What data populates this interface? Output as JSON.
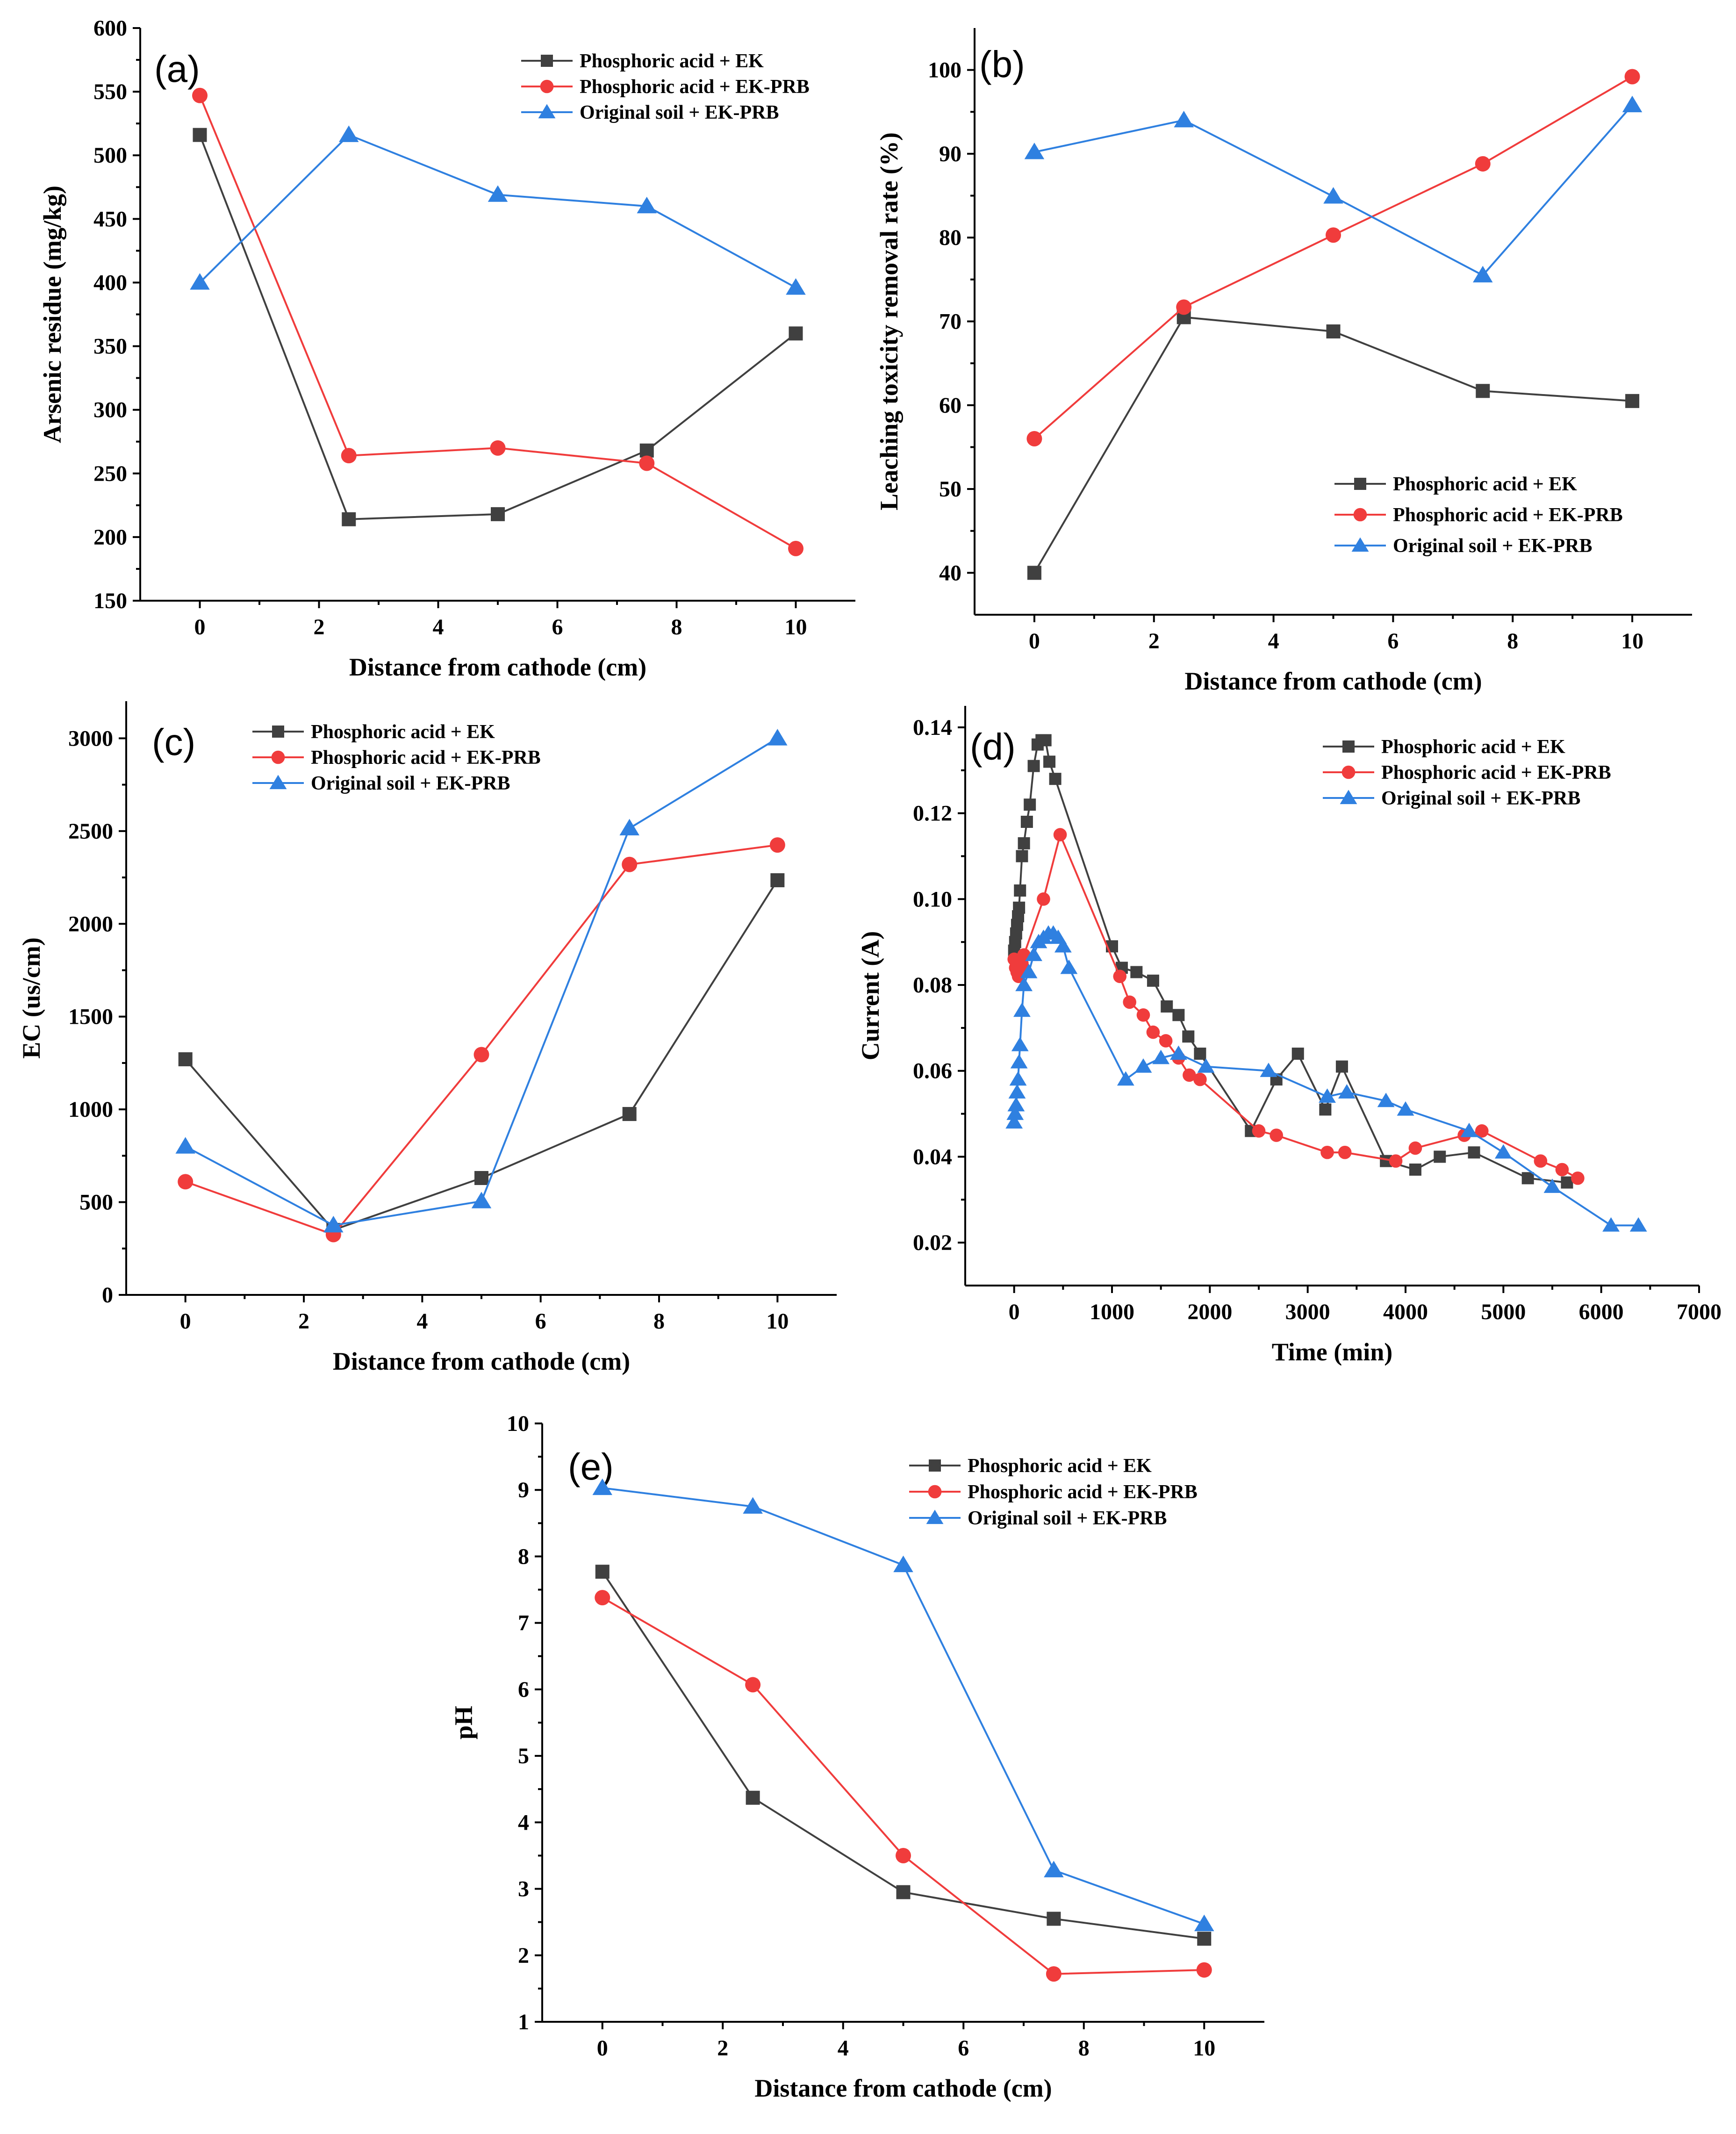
{
  "figure": {
    "colors": {
      "Phosphoric acid + EK": "#404040",
      "Phosphoric acid + EK-PRB": "#f03c3c",
      "Original soil + EK-PRB": "#2f80e0"
    },
    "markers": {
      "Phosphoric acid + EK": "square",
      "Phosphoric acid + EK-PRB": "circle",
      "Original soil + EK-PRB": "triangle"
    }
  },
  "chart_data": [
    {
      "id": "a",
      "panel_label": "(a)",
      "type": "line",
      "xlabel": "Distance from cathode (cm)",
      "ylabel": "Arsenic residue (mg/kg)",
      "xlim": [
        -1,
        11
      ],
      "ylim": [
        150,
        600
      ],
      "xticks": [
        0,
        2,
        4,
        6,
        8,
        10
      ],
      "yticks": [
        150,
        200,
        250,
        300,
        350,
        400,
        450,
        500,
        550,
        600
      ],
      "legend": "top-right",
      "series": [
        {
          "name": "Phosphoric acid + EK",
          "x": [
            0,
            2.5,
            5,
            7.5,
            10
          ],
          "values": [
            516,
            214,
            218,
            268,
            360
          ]
        },
        {
          "name": "Phosphoric acid + EK-PRB",
          "x": [
            0,
            2.5,
            5,
            7.5,
            10
          ],
          "values": [
            547,
            264,
            270,
            258,
            191
          ]
        },
        {
          "name": "Original soil + EK-PRB",
          "x": [
            0,
            2.5,
            5,
            7.5,
            10
          ],
          "values": [
            400,
            516,
            469,
            460,
            396
          ]
        }
      ]
    },
    {
      "id": "b",
      "panel_label": "(b)",
      "type": "line",
      "xlabel": "Distance from cathode (cm)",
      "ylabel": "Leaching toxicity removal rate (%)",
      "xlim": [
        -1,
        11
      ],
      "ylim": [
        35,
        105
      ],
      "xticks": [
        0,
        2,
        4,
        6,
        8,
        10
      ],
      "yticks": [
        40,
        50,
        60,
        70,
        80,
        90,
        100
      ],
      "legend": "bottom-right",
      "series": [
        {
          "name": "Phosphoric acid + EK",
          "x": [
            0,
            2.5,
            5,
            7.5,
            10
          ],
          "values": [
            40,
            70.5,
            68.8,
            61.7,
            60.5
          ]
        },
        {
          "name": "Phosphoric acid + EK-PRB",
          "x": [
            0,
            2.5,
            5,
            7.5,
            10
          ],
          "values": [
            56,
            71.7,
            80.3,
            88.8,
            99.2
          ]
        },
        {
          "name": "Original soil + EK-PRB",
          "x": [
            0,
            2.5,
            5,
            7.5,
            10
          ],
          "values": [
            90.2,
            94,
            84.9,
            75.5,
            95.8
          ]
        }
      ]
    },
    {
      "id": "c",
      "panel_label": "(c)",
      "type": "line",
      "xlabel": "Distance from cathode (cm)",
      "ylabel": "EC (us/cm)",
      "xlim": [
        -1,
        11
      ],
      "ylim": [
        0,
        3200
      ],
      "xticks": [
        0,
        2,
        4,
        6,
        8,
        10
      ],
      "yticks": [
        0,
        500,
        1000,
        1500,
        2000,
        2500,
        3000
      ],
      "legend": "top-left",
      "series": [
        {
          "name": "Phosphoric acid + EK",
          "x": [
            0,
            2.5,
            5,
            7.5,
            10
          ],
          "values": [
            1270,
            350,
            630,
            975,
            2235
          ]
        },
        {
          "name": "Phosphoric acid + EK-PRB",
          "x": [
            0,
            2.5,
            5,
            7.5,
            10
          ],
          "values": [
            610,
            325,
            1295,
            2320,
            2425
          ]
        },
        {
          "name": "Original soil + EK-PRB",
          "x": [
            0,
            2.5,
            5,
            7.5,
            10
          ],
          "values": [
            800,
            375,
            505,
            2515,
            3000
          ]
        }
      ]
    },
    {
      "id": "d",
      "panel_label": "(d)",
      "type": "line",
      "xlabel": "Time (min)",
      "ylabel": "Current (A)",
      "xlim": [
        -500,
        7000
      ],
      "ylim": [
        0.01,
        0.145
      ],
      "xticks": [
        0,
        1000,
        2000,
        3000,
        4000,
        5000,
        6000,
        7000
      ],
      "yticks": [
        0.02,
        0.04,
        0.06,
        0.08,
        0.1,
        0.12,
        0.14
      ],
      "ytick_labels": [
        "0.02",
        "0.04",
        "0.06",
        "0.08",
        "0.10",
        "0.12",
        "0.14"
      ],
      "legend": "top-right",
      "series": [
        {
          "name": "Phosphoric acid + EK",
          "x": [
            0,
            10,
            20,
            30,
            40,
            50,
            60,
            80,
            100,
            130,
            160,
            200,
            240,
            280,
            320,
            360,
            420,
            1000,
            1100,
            1250,
            1420,
            1560,
            1680,
            1780,
            1900,
            2420,
            2680,
            2900,
            3180,
            3350,
            3800,
            4100,
            4350,
            4700,
            5250,
            5650
          ],
          "values": [
            0.088,
            0.09,
            0.092,
            0.094,
            0.096,
            0.098,
            0.102,
            0.11,
            0.113,
            0.118,
            0.122,
            0.131,
            0.136,
            0.137,
            0.137,
            0.132,
            0.128,
            0.089,
            0.084,
            0.083,
            0.081,
            0.075,
            0.073,
            0.068,
            0.064,
            0.046,
            0.058,
            0.064,
            0.051,
            0.061,
            0.039,
            0.037,
            0.04,
            0.041,
            0.035,
            0.034
          ]
        },
        {
          "name": "Phosphoric acid + EK-PRB",
          "x": [
            0,
            15,
            30,
            45,
            60,
            80,
            100,
            300,
            470,
            1080,
            1180,
            1320,
            1420,
            1550,
            1680,
            1790,
            1900,
            2500,
            2680,
            3200,
            3380,
            3900,
            4100,
            4600,
            4780,
            5380,
            5600,
            5760
          ],
          "values": [
            0.086,
            0.084,
            0.083,
            0.082,
            0.084,
            0.085,
            0.087,
            0.1,
            0.115,
            0.082,
            0.076,
            0.073,
            0.069,
            0.067,
            0.063,
            0.059,
            0.058,
            0.046,
            0.045,
            0.041,
            0.041,
            0.039,
            0.042,
            0.045,
            0.046,
            0.039,
            0.037,
            0.035
          ]
        },
        {
          "name": "Original soil + EK-PRB",
          "x": [
            0,
            10,
            20,
            30,
            40,
            50,
            60,
            80,
            100,
            150,
            200,
            250,
            300,
            350,
            400,
            450,
            500,
            560,
            1140,
            1320,
            1500,
            1680,
            1960,
            2600,
            3200,
            3400,
            3800,
            4000,
            4650,
            5000,
            5500,
            6100,
            6380
          ],
          "values": [
            0.048,
            0.05,
            0.052,
            0.055,
            0.058,
            0.062,
            0.066,
            0.074,
            0.08,
            0.083,
            0.087,
            0.09,
            0.091,
            0.092,
            0.092,
            0.091,
            0.089,
            0.084,
            0.058,
            0.061,
            0.063,
            0.064,
            0.061,
            0.06,
            0.054,
            0.055,
            0.053,
            0.051,
            0.046,
            0.041,
            0.033,
            0.024,
            0.024
          ]
        }
      ]
    },
    {
      "id": "e",
      "panel_label": "(e)",
      "type": "line",
      "xlabel": "Distance from cathode (cm)",
      "ylabel": "pH",
      "xlim": [
        -1,
        11
      ],
      "ylim": [
        1,
        10
      ],
      "xticks": [
        0,
        2,
        4,
        6,
        8,
        10
      ],
      "yticks": [
        1,
        2,
        3,
        4,
        5,
        6,
        7,
        8,
        9,
        10
      ],
      "legend": "top-right",
      "series": [
        {
          "name": "Phosphoric acid + EK",
          "x": [
            0,
            2.5,
            5,
            7.5,
            10
          ],
          "values": [
            7.77,
            4.37,
            2.95,
            2.55,
            2.25
          ]
        },
        {
          "name": "Phosphoric acid + EK-PRB",
          "x": [
            0,
            2.5,
            5,
            7.5,
            10
          ],
          "values": [
            7.38,
            6.07,
            3.5,
            1.72,
            1.78
          ]
        },
        {
          "name": "Original soil + EK-PRB",
          "x": [
            0,
            2.5,
            5,
            7.5,
            10
          ],
          "values": [
            9.03,
            8.75,
            7.87,
            3.28,
            2.47
          ]
        }
      ]
    }
  ]
}
